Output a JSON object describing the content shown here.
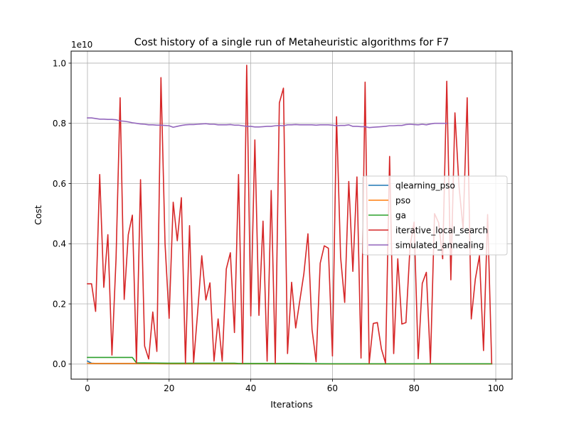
{
  "chart_data": {
    "type": "line",
    "title": "Cost history of a single run of Metaheuristic algorithms for F7",
    "xlabel": "Iterations",
    "ylabel": "Cost",
    "y_offset_label": "1e10",
    "xlim": [
      -4,
      104
    ],
    "ylim": [
      -0.05,
      1.04
    ],
    "x_ticks": [
      0,
      20,
      40,
      60,
      80,
      100
    ],
    "x_tick_labels": [
      "0",
      "20",
      "40",
      "60",
      "80",
      "100"
    ],
    "y_ticks": [
      0.0,
      0.2,
      0.4,
      0.6,
      0.8,
      1.0
    ],
    "y_tick_labels": [
      "0.0",
      "0.2",
      "0.4",
      "0.6",
      "0.8",
      "1.0"
    ],
    "grid": true,
    "legend_position": "center-right",
    "series": [
      {
        "name": "qlearning_pso",
        "color": "#1f77b4",
        "x": [
          0,
          1,
          2,
          5,
          10,
          20,
          30,
          40,
          50,
          60,
          70,
          80,
          90,
          99
        ],
        "y": [
          0.01,
          0.003,
          0.002,
          0.002,
          0.002,
          0.001,
          0.001,
          0.001,
          0.001,
          0.0005,
          0.0005,
          0.0005,
          0.0005,
          0.0005
        ]
      },
      {
        "name": "pso",
        "color": "#ff7f0e",
        "x": [
          0,
          1,
          2,
          5,
          10,
          20,
          30,
          40,
          50,
          60,
          70,
          80,
          90,
          99
        ],
        "y": [
          0.003,
          0.002,
          0.002,
          0.002,
          0.002,
          0.001,
          0.001,
          0.001,
          0.001,
          0.0005,
          0.0005,
          0.0005,
          0.0005,
          0.0005
        ]
      },
      {
        "name": "ga",
        "color": "#2ca02c",
        "x": [
          0,
          11,
          12,
          20,
          36,
          37,
          50,
          60,
          70,
          80,
          90,
          99
        ],
        "y": [
          0.022,
          0.022,
          0.004,
          0.003,
          0.003,
          0.002,
          0.002,
          0.001,
          0.001,
          0.001,
          0.001,
          0.001
        ]
      },
      {
        "name": "iterative_local_search",
        "color": "#d62728",
        "x": [
          0,
          1,
          2,
          3,
          4,
          5,
          6,
          7,
          8,
          9,
          10,
          11,
          12,
          13,
          14,
          15,
          16,
          17,
          18,
          19,
          20,
          21,
          22,
          23,
          24,
          25,
          26,
          27,
          28,
          29,
          30,
          31,
          32,
          33,
          34,
          35,
          36,
          37,
          38,
          39,
          40,
          41,
          42,
          43,
          44,
          45,
          46,
          47,
          48,
          49,
          50,
          51,
          52,
          53,
          54,
          55,
          56,
          57,
          58,
          59,
          60,
          61,
          62,
          63,
          64,
          65,
          66,
          67,
          68,
          69,
          70,
          71,
          72,
          73,
          74,
          75,
          76,
          77,
          78,
          79,
          80,
          81,
          82,
          83,
          84,
          85,
          86,
          87,
          88,
          89,
          90,
          91,
          92,
          93,
          94,
          95,
          96,
          97,
          98,
          99
        ],
        "y": [
          0.267,
          0.267,
          0.175,
          0.63,
          0.255,
          0.43,
          0.03,
          0.35,
          0.885,
          0.215,
          0.43,
          0.495,
          0.005,
          0.613,
          0.06,
          0.017,
          0.173,
          0.042,
          0.952,
          0.4,
          0.152,
          0.538,
          0.41,
          0.553,
          0.003,
          0.46,
          0.005,
          0.175,
          0.36,
          0.213,
          0.27,
          0.01,
          0.15,
          0.01,
          0.316,
          0.37,
          0.105,
          0.63,
          0.003,
          0.993,
          0.16,
          0.745,
          0.162,
          0.475,
          0.01,
          0.577,
          0.003,
          0.868,
          0.917,
          0.035,
          0.272,
          0.12,
          0.21,
          0.3,
          0.433,
          0.115,
          0.008,
          0.335,
          0.393,
          0.385,
          0.027,
          0.822,
          0.355,
          0.205,
          0.607,
          0.308,
          0.622,
          0.02,
          0.937,
          0.003,
          0.135,
          0.138,
          0.05,
          0.003,
          0.69,
          0.035,
          0.35,
          0.133,
          0.138,
          0.39,
          0.472,
          0.018,
          0.268,
          0.305,
          0.003,
          0.5,
          0.47,
          0.35,
          0.94,
          0.28,
          0.835,
          0.59,
          0.45,
          0.885,
          0.15,
          0.283,
          0.36,
          0.045,
          0.497,
          0.003
        ]
      },
      {
        "name": "simulated_annealing",
        "color": "#9467bd",
        "x": [
          0,
          1,
          2,
          3,
          4,
          5,
          6,
          7,
          8,
          9,
          10,
          11,
          12,
          13,
          14,
          15,
          16,
          17,
          18,
          19,
          20,
          21,
          22,
          23,
          24,
          25,
          26,
          27,
          28,
          29,
          30,
          31,
          32,
          33,
          34,
          35,
          36,
          37,
          38,
          39,
          40,
          41,
          42,
          43,
          44,
          45,
          46,
          47,
          48,
          49,
          50,
          51,
          52,
          53,
          54,
          55,
          56,
          57,
          58,
          59,
          60,
          61,
          62,
          63,
          64,
          65,
          66,
          67,
          68,
          69,
          70,
          71,
          72,
          73,
          74,
          75,
          76,
          77,
          78,
          79,
          80,
          81,
          82,
          83,
          84,
          85,
          86,
          87,
          88
        ],
        "y": [
          0.818,
          0.818,
          0.816,
          0.814,
          0.814,
          0.813,
          0.813,
          0.812,
          0.808,
          0.807,
          0.805,
          0.802,
          0.8,
          0.798,
          0.797,
          0.795,
          0.795,
          0.794,
          0.794,
          0.793,
          0.792,
          0.787,
          0.79,
          0.793,
          0.795,
          0.796,
          0.796,
          0.797,
          0.798,
          0.799,
          0.797,
          0.797,
          0.795,
          0.795,
          0.795,
          0.796,
          0.794,
          0.794,
          0.792,
          0.79,
          0.79,
          0.788,
          0.788,
          0.789,
          0.79,
          0.79,
          0.792,
          0.793,
          0.792,
          0.795,
          0.795,
          0.796,
          0.795,
          0.795,
          0.795,
          0.795,
          0.794,
          0.795,
          0.795,
          0.795,
          0.794,
          0.792,
          0.793,
          0.793,
          0.795,
          0.79,
          0.79,
          0.789,
          0.789,
          0.786,
          0.787,
          0.788,
          0.789,
          0.79,
          0.792,
          0.792,
          0.793,
          0.793,
          0.796,
          0.797,
          0.796,
          0.795,
          0.797,
          0.795,
          0.798,
          0.8,
          0.8,
          0.8,
          0.8
        ]
      }
    ]
  }
}
